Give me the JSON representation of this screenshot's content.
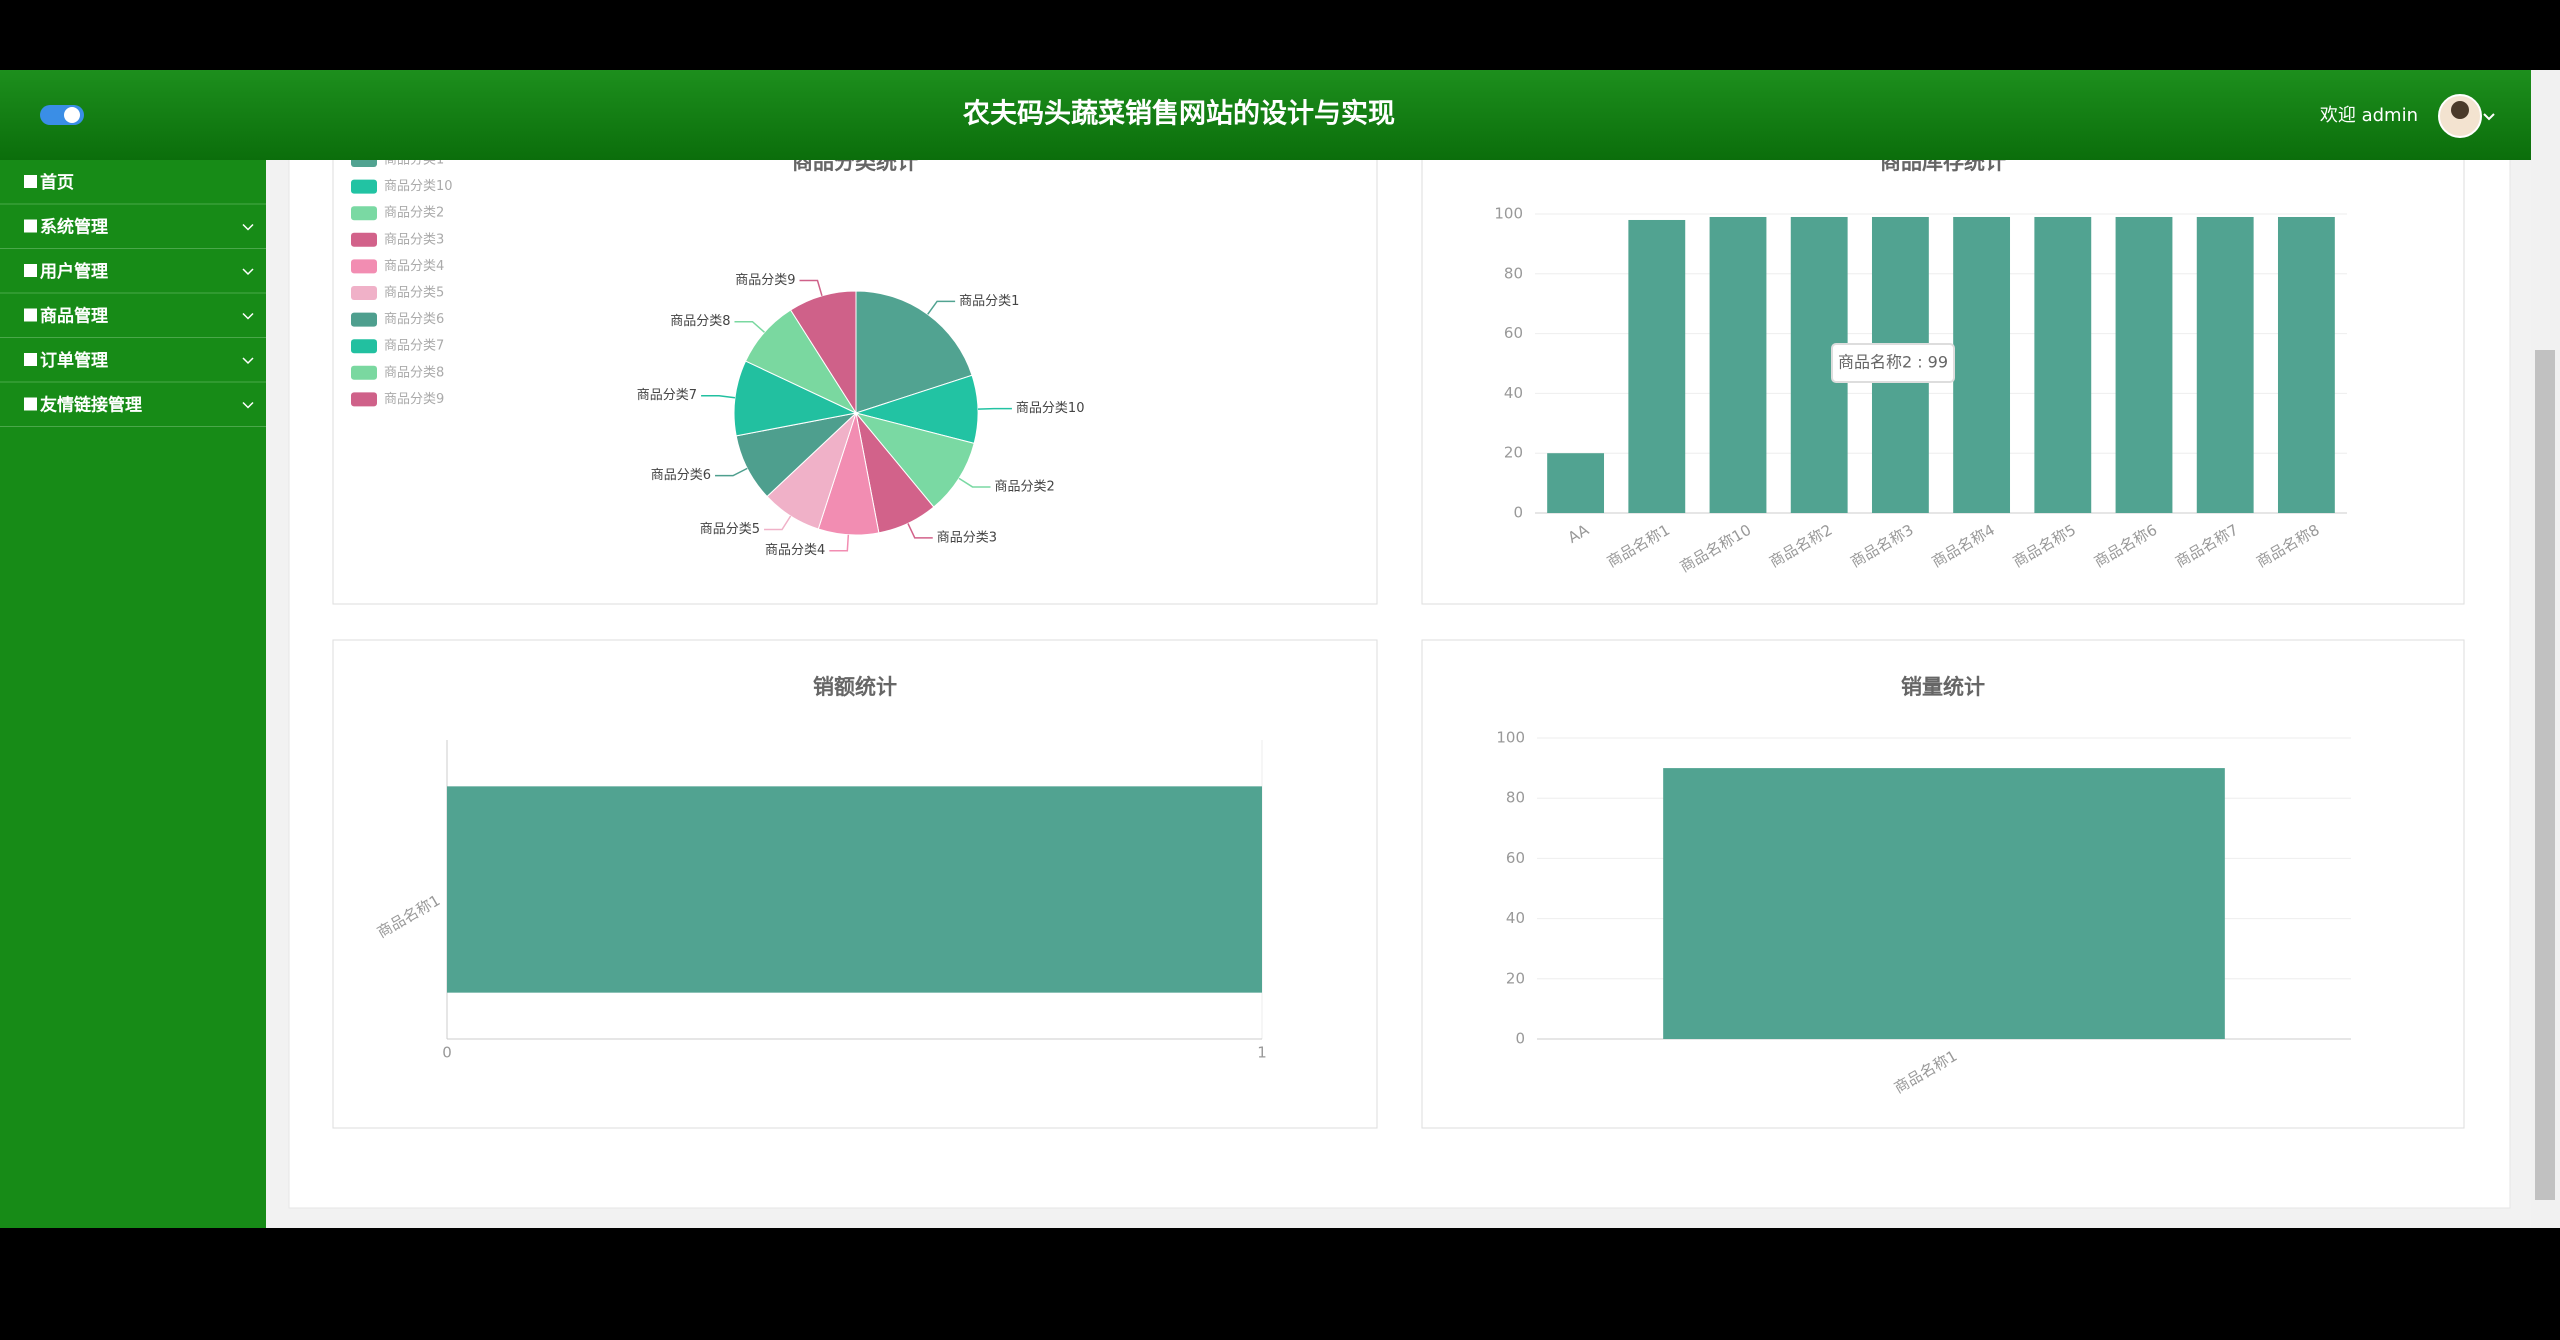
{
  "header": {
    "title": "农夫码头蔬菜销售网站的设计与实现",
    "welcome": "欢迎 admin"
  },
  "sidebar": {
    "items": [
      "首页",
      "系统管理",
      "用户管理",
      "商品管理",
      "订单管理",
      "友情链接管理"
    ]
  },
  "chart_data": [
    {
      "type": "pie",
      "title": "商品分类统计",
      "categories": [
        "商品分类1",
        "商品分类10",
        "商品分类2",
        "商品分类3",
        "商品分类4",
        "商品分类5",
        "商品分类6",
        "商品分类7",
        "商品分类8",
        "商品分类9"
      ],
      "values": [
        20,
        9,
        10,
        8,
        8,
        8,
        9,
        10,
        9,
        9
      ],
      "colors": [
        "#51a391",
        "#22c3a3",
        "#7ad9a3",
        "#d2628a",
        "#f28db2",
        "#f0b1c8",
        "#4e9f8e",
        "#22c0a0",
        "#7ad8a0",
        "#cf6189"
      ],
      "legend": "top-left"
    },
    {
      "type": "bar",
      "title": "商品库存统计",
      "categories": [
        "AA",
        "商品名称1",
        "商品名称10",
        "商品名称2",
        "商品名称3",
        "商品名称4",
        "商品名称5",
        "商品名称6",
        "商品名称7",
        "商品名称8"
      ],
      "values": [
        20,
        98,
        99,
        99,
        99,
        99,
        99,
        99,
        99,
        99
      ],
      "color": "#51a391",
      "ylim": [
        0,
        100
      ],
      "yticks": [
        0,
        20,
        40,
        60,
        80,
        100
      ],
      "grid": true,
      "tooltip": "商品名称2 : 99"
    },
    {
      "type": "bar",
      "horizontal": true,
      "title": "销额统计",
      "categories": [
        "商品名称1"
      ],
      "values": [
        1
      ],
      "color": "#51a391",
      "xlim": [
        0,
        1
      ],
      "xticks": [
        0,
        1
      ],
      "grid": true
    },
    {
      "type": "bar",
      "title": "销量统计",
      "categories": [
        "商品名称1"
      ],
      "values": [
        90
      ],
      "color": "#51a391",
      "ylim": [
        0,
        100
      ],
      "yticks": [
        0,
        20,
        40,
        60,
        80,
        100
      ],
      "grid": true
    }
  ]
}
